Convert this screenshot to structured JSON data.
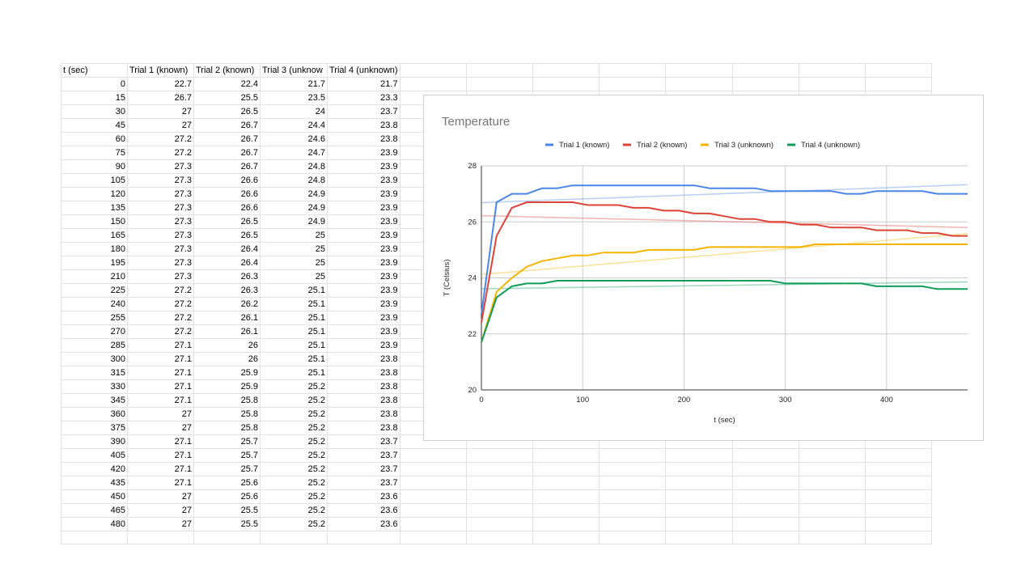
{
  "table": {
    "headers": [
      "t (sec)",
      "Trial 1 (known)",
      "Trial 2 (known)",
      "Trial 3 (unknow",
      "Trial 4 (unknown)"
    ],
    "rows": [
      [
        "0",
        "22.7",
        "22.4",
        "21.7",
        "21.7"
      ],
      [
        "15",
        "26.7",
        "25.5",
        "23.5",
        "23.3"
      ],
      [
        "30",
        "27",
        "26.5",
        "24",
        "23.7"
      ],
      [
        "45",
        "27",
        "26.7",
        "24.4",
        "23.8"
      ],
      [
        "60",
        "27.2",
        "26.7",
        "24.6",
        "23.8"
      ],
      [
        "75",
        "27.2",
        "26.7",
        "24.7",
        "23.9"
      ],
      [
        "90",
        "27.3",
        "26.7",
        "24.8",
        "23.9"
      ],
      [
        "105",
        "27.3",
        "26.6",
        "24.8",
        "23.9"
      ],
      [
        "120",
        "27.3",
        "26.6",
        "24.9",
        "23.9"
      ],
      [
        "135",
        "27.3",
        "26.6",
        "24.9",
        "23.9"
      ],
      [
        "150",
        "27.3",
        "26.5",
        "24.9",
        "23.9"
      ],
      [
        "165",
        "27.3",
        "26.5",
        "25",
        "23.9"
      ],
      [
        "180",
        "27.3",
        "26.4",
        "25",
        "23.9"
      ],
      [
        "195",
        "27.3",
        "26.4",
        "25",
        "23.9"
      ],
      [
        "210",
        "27.3",
        "26.3",
        "25",
        "23.9"
      ],
      [
        "225",
        "27.2",
        "26.3",
        "25.1",
        "23.9"
      ],
      [
        "240",
        "27.2",
        "26.2",
        "25.1",
        "23.9"
      ],
      [
        "255",
        "27.2",
        "26.1",
        "25.1",
        "23.9"
      ],
      [
        "270",
        "27.2",
        "26.1",
        "25.1",
        "23.9"
      ],
      [
        "285",
        "27.1",
        "26",
        "25.1",
        "23.9"
      ],
      [
        "300",
        "27.1",
        "26",
        "25.1",
        "23.8"
      ],
      [
        "315",
        "27.1",
        "25.9",
        "25.1",
        "23.8"
      ],
      [
        "330",
        "27.1",
        "25.9",
        "25.2",
        "23.8"
      ],
      [
        "345",
        "27.1",
        "25.8",
        "25.2",
        "23.8"
      ],
      [
        "360",
        "27",
        "25.8",
        "25.2",
        "23.8"
      ],
      [
        "375",
        "27",
        "25.8",
        "25.2",
        "23.8"
      ],
      [
        "390",
        "27.1",
        "25.7",
        "25.2",
        "23.7"
      ],
      [
        "405",
        "27.1",
        "25.7",
        "25.2",
        "23.7"
      ],
      [
        "420",
        "27.1",
        "25.7",
        "25.2",
        "23.7"
      ],
      [
        "435",
        "27.1",
        "25.6",
        "25.2",
        "23.7"
      ],
      [
        "450",
        "27",
        "25.6",
        "25.2",
        "23.6"
      ],
      [
        "465",
        "27",
        "25.5",
        "25.2",
        "23.6"
      ],
      [
        "480",
        "27",
        "25.5",
        "25.2",
        "23.6"
      ]
    ]
  },
  "chart_data": {
    "type": "line",
    "title": "Temperature",
    "xlabel": "t (sec)",
    "ylabel": "T (Celsius)",
    "xlim": [
      0,
      480
    ],
    "ylim": [
      20,
      28
    ],
    "xticks": [
      "0",
      "100",
      "200",
      "300",
      "400"
    ],
    "yticks": [
      "20",
      "22",
      "24",
      "26",
      "28"
    ],
    "grid": true,
    "legend": "top",
    "trendlines": true,
    "x": [
      0,
      15,
      30,
      45,
      60,
      75,
      90,
      105,
      120,
      135,
      150,
      165,
      180,
      195,
      210,
      225,
      240,
      255,
      270,
      285,
      300,
      315,
      330,
      345,
      360,
      375,
      390,
      405,
      420,
      435,
      450,
      465,
      480
    ],
    "series": [
      {
        "name": "Trial 1 (known)",
        "color": "#4a86e8",
        "values": [
          22.7,
          26.7,
          27,
          27,
          27.2,
          27.2,
          27.3,
          27.3,
          27.3,
          27.3,
          27.3,
          27.3,
          27.3,
          27.3,
          27.3,
          27.2,
          27.2,
          27.2,
          27.2,
          27.1,
          27.1,
          27.1,
          27.1,
          27.1,
          27,
          27,
          27.1,
          27.1,
          27.1,
          27.1,
          27,
          27,
          27
        ]
      },
      {
        "name": "Trial 2 (known)",
        "color": "#db4437",
        "values": [
          22.4,
          25.5,
          26.5,
          26.7,
          26.7,
          26.7,
          26.7,
          26.6,
          26.6,
          26.6,
          26.5,
          26.5,
          26.4,
          26.4,
          26.3,
          26.3,
          26.2,
          26.1,
          26.1,
          26,
          26,
          25.9,
          25.9,
          25.8,
          25.8,
          25.8,
          25.7,
          25.7,
          25.7,
          25.6,
          25.6,
          25.5,
          25.5
        ]
      },
      {
        "name": "Trial 3 (unknown)",
        "color": "#f4b400",
        "values": [
          21.7,
          23.5,
          24,
          24.4,
          24.6,
          24.7,
          24.8,
          24.8,
          24.9,
          24.9,
          24.9,
          25,
          25,
          25,
          25,
          25.1,
          25.1,
          25.1,
          25.1,
          25.1,
          25.1,
          25.1,
          25.2,
          25.2,
          25.2,
          25.2,
          25.2,
          25.2,
          25.2,
          25.2,
          25.2,
          25.2,
          25.2
        ]
      },
      {
        "name": "Trial 4 (unknown)",
        "color": "#0f9d58",
        "values": [
          21.7,
          23.3,
          23.7,
          23.8,
          23.8,
          23.9,
          23.9,
          23.9,
          23.9,
          23.9,
          23.9,
          23.9,
          23.9,
          23.9,
          23.9,
          23.9,
          23.9,
          23.9,
          23.9,
          23.9,
          23.8,
          23.8,
          23.8,
          23.8,
          23.8,
          23.8,
          23.7,
          23.7,
          23.7,
          23.7,
          23.6,
          23.6,
          23.6
        ]
      }
    ]
  }
}
